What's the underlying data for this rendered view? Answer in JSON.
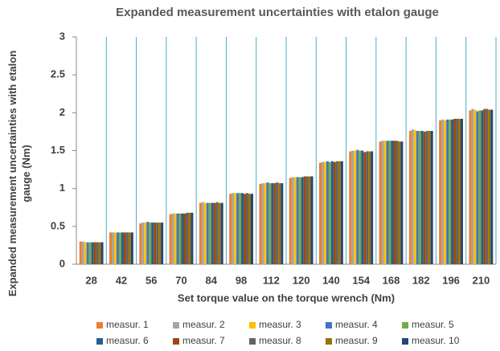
{
  "chart_data": {
    "type": "bar",
    "title": "Expanded measurement uncertainties with etalon gauge",
    "x_label": "Set torque value on the torque wrench (Nm)",
    "y_label": "Expanded measurement uncertainties with etalon gauge (Nm)",
    "categories": [
      "28",
      "42",
      "56",
      "70",
      "84",
      "98",
      "112",
      "120",
      "140",
      "154",
      "168",
      "182",
      "196",
      "210"
    ],
    "ylim": [
      0,
      3
    ],
    "yticks": [
      0,
      0.5,
      1,
      1.5,
      2,
      2.5,
      3
    ],
    "grid": true,
    "grid_color": "#4bacc6",
    "legend": "bottom",
    "series": [
      {
        "name": "measur. 1",
        "color": "#ed7d31",
        "values": [
          0.3,
          0.42,
          0.54,
          0.66,
          0.81,
          0.93,
          1.06,
          1.14,
          1.34,
          1.49,
          1.62,
          1.76,
          1.9,
          2.03
        ]
      },
      {
        "name": "measur. 2",
        "color": "#a5a5a5",
        "values": [
          0.3,
          0.42,
          0.55,
          0.67,
          0.82,
          0.94,
          1.07,
          1.15,
          1.35,
          1.5,
          1.63,
          1.78,
          1.91,
          2.05
        ]
      },
      {
        "name": "measur. 3",
        "color": "#ffc000",
        "values": [
          0.29,
          0.42,
          0.55,
          0.67,
          0.81,
          0.94,
          1.07,
          1.15,
          1.35,
          1.5,
          1.63,
          1.77,
          1.9,
          2.04
        ]
      },
      {
        "name": "measur. 4",
        "color": "#4472c4",
        "values": [
          0.29,
          0.42,
          0.56,
          0.67,
          0.81,
          0.94,
          1.08,
          1.15,
          1.36,
          1.51,
          1.63,
          1.76,
          1.91,
          2.02
        ]
      },
      {
        "name": "measur. 5",
        "color": "#70ad47",
        "values": [
          0.29,
          0.42,
          0.55,
          0.67,
          0.81,
          0.94,
          1.07,
          1.15,
          1.35,
          1.5,
          1.63,
          1.76,
          1.91,
          2.03
        ]
      },
      {
        "name": "measur. 6",
        "color": "#255e91",
        "values": [
          0.29,
          0.42,
          0.55,
          0.67,
          0.81,
          0.94,
          1.07,
          1.15,
          1.36,
          1.5,
          1.63,
          1.76,
          1.91,
          2.03
        ]
      },
      {
        "name": "measur. 7",
        "color": "#9e480e",
        "values": [
          0.29,
          0.42,
          0.55,
          0.67,
          0.81,
          0.93,
          1.07,
          1.16,
          1.35,
          1.48,
          1.63,
          1.75,
          1.92,
          2.05
        ]
      },
      {
        "name": "measur. 8",
        "color": "#636363",
        "values": [
          0.29,
          0.42,
          0.55,
          0.68,
          0.82,
          0.94,
          1.08,
          1.16,
          1.36,
          1.49,
          1.63,
          1.76,
          1.92,
          2.05
        ]
      },
      {
        "name": "measur. 9",
        "color": "#997300",
        "values": [
          0.29,
          0.42,
          0.55,
          0.68,
          0.81,
          0.93,
          1.07,
          1.16,
          1.36,
          1.49,
          1.62,
          1.76,
          1.92,
          2.04
        ]
      },
      {
        "name": "measur. 10",
        "color": "#264478",
        "values": [
          0.29,
          0.42,
          0.55,
          0.68,
          0.81,
          0.93,
          1.07,
          1.16,
          1.36,
          1.49,
          1.62,
          1.76,
          1.92,
          2.04
        ]
      }
    ]
  }
}
